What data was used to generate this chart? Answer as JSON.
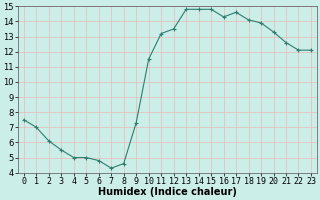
{
  "x": [
    0,
    1,
    2,
    3,
    4,
    5,
    6,
    7,
    8,
    9,
    10,
    11,
    12,
    13,
    14,
    15,
    16,
    17,
    18,
    19,
    20,
    21,
    22,
    23
  ],
  "y": [
    7.5,
    7.0,
    6.1,
    5.5,
    5.0,
    5.0,
    4.8,
    4.3,
    4.6,
    7.3,
    11.5,
    13.2,
    13.5,
    14.8,
    14.8,
    14.8,
    14.3,
    14.6,
    14.1,
    13.9,
    13.3,
    12.6,
    12.1,
    12.1
  ],
  "xlabel": "Humidex (Indice chaleur)",
  "ylim": [
    4,
    15
  ],
  "yticks": [
    4,
    5,
    6,
    7,
    8,
    9,
    10,
    11,
    12,
    13,
    14,
    15
  ],
  "xticks": [
    0,
    1,
    2,
    3,
    4,
    5,
    6,
    7,
    8,
    9,
    10,
    11,
    12,
    13,
    14,
    15,
    16,
    17,
    18,
    19,
    20,
    21,
    22,
    23
  ],
  "line_color": "#2e7d6e",
  "marker": "+",
  "bg_color": "#cceee8",
  "grid_color": "#e8b8b8",
  "xlabel_fontsize": 7,
  "tick_fontsize": 6,
  "xlim": [
    -0.5,
    23.5
  ]
}
